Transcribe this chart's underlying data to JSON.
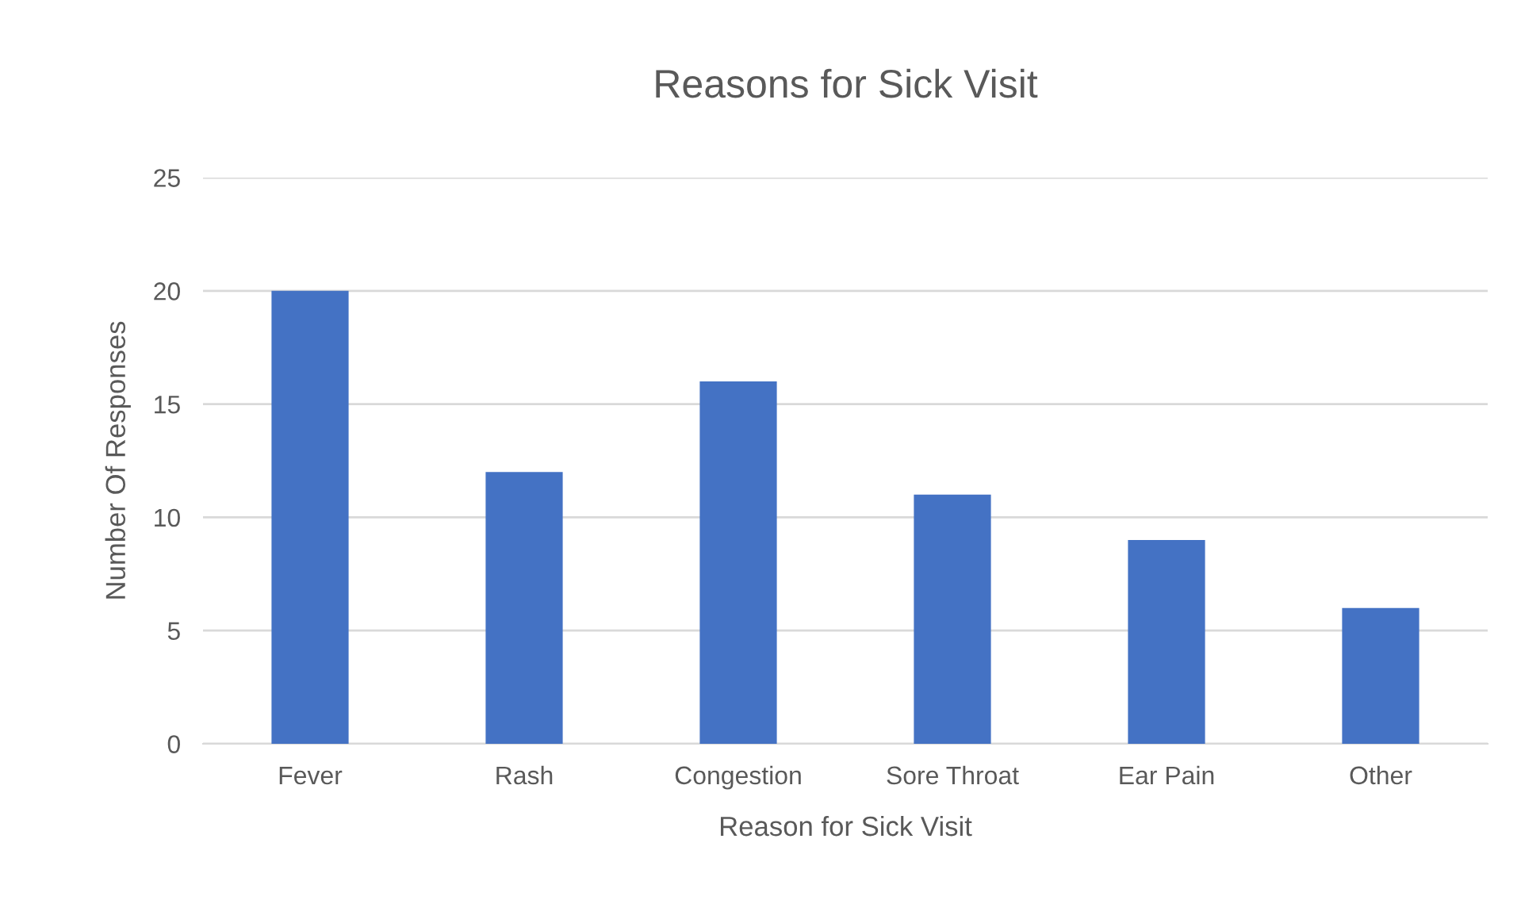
{
  "chart_data": {
    "type": "bar",
    "title": "Reasons for Sick Visit",
    "xlabel": "Reason for Sick Visit",
    "ylabel": "Number Of Responses",
    "categories": [
      "Fever",
      "Rash",
      "Congestion",
      "Sore Throat",
      "Ear Pain",
      "Other"
    ],
    "values": [
      20,
      12,
      16,
      11,
      9,
      6
    ],
    "color": "#4472c4",
    "ylim": [
      0,
      25
    ],
    "yticks": [
      0,
      5,
      10,
      15,
      20,
      25
    ],
    "grid": "y",
    "legend": false
  }
}
